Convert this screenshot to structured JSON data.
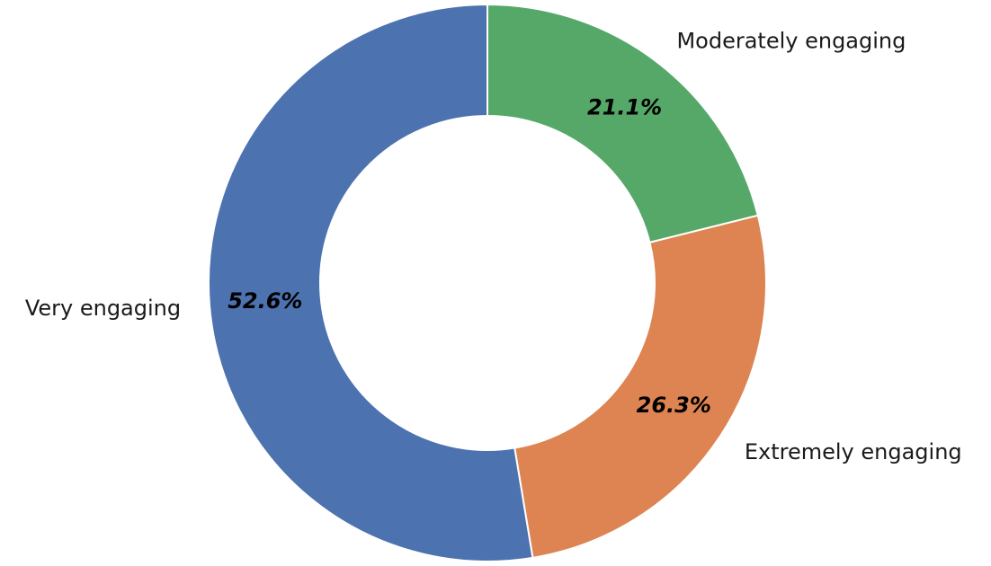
{
  "chart_data": {
    "type": "pie",
    "donut": true,
    "categories": [
      "Moderately engaging",
      "Extremely engaging",
      "Very engaging"
    ],
    "values": [
      21.1,
      26.3,
      52.6
    ],
    "percent_labels": [
      "21.1%",
      "26.3%",
      "52.6%"
    ],
    "colors": [
      "#55a868",
      "#dd8452",
      "#4c72b0"
    ],
    "start": "top",
    "direction": "clockwise"
  }
}
